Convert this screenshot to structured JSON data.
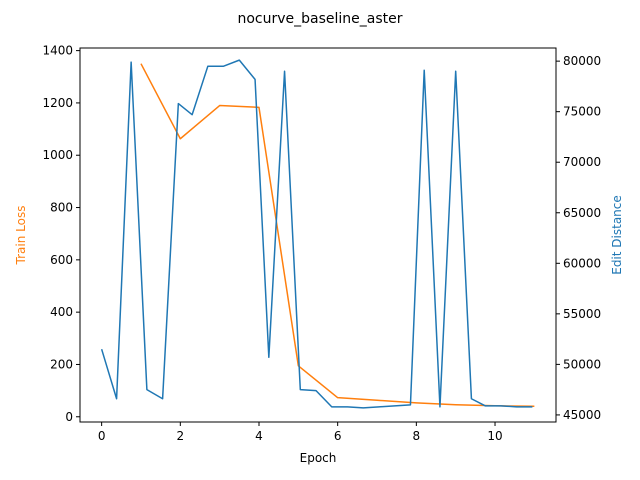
{
  "chart_data": {
    "type": "line",
    "title": "nocurve_baseline_aster",
    "xlabel": "Epoch",
    "ylabel_left": "Train Loss",
    "ylabel_right": "Edit Distance",
    "xlim": [
      -0.55,
      11.55
    ],
    "ylim_left": [
      -20,
      1410
    ],
    "ylim_right": [
      44300,
      81300
    ],
    "x_ticks": [
      0,
      2,
      4,
      6,
      8,
      10
    ],
    "y_ticks_left": [
      0,
      200,
      400,
      600,
      800,
      1000,
      1200,
      1400
    ],
    "y_ticks_right": [
      45000,
      50000,
      55000,
      60000,
      65000,
      70000,
      75000,
      80000
    ],
    "y_tick_labels_right": [
      "45000",
      "50000",
      "55000",
      "60000",
      "65000",
      "70000",
      "75000",
      "80000"
    ],
    "grid": false,
    "series": [
      {
        "axis": "left",
        "color": "#ff7f0e",
        "x": [
          1,
          2,
          3,
          4,
          5,
          6,
          7,
          8,
          9,
          10,
          11
        ],
        "y": [
          1350,
          1063,
          1190,
          1183,
          195,
          73,
          63,
          53,
          46,
          42,
          40
        ]
      },
      {
        "axis": "right",
        "color": "#1f77b4",
        "x": [
          0,
          0.38,
          0.75,
          1.15,
          1.55,
          1.95,
          2.3,
          2.7,
          3.1,
          3.5,
          3.9,
          4.25,
          4.65,
          5.05,
          5.45,
          5.85,
          6.25,
          6.65,
          7.05,
          7.45,
          7.85,
          8.2,
          8.6,
          9.0,
          9.4,
          9.75,
          10.15,
          10.55,
          10.95
        ],
        "y": [
          51500,
          46600,
          79900,
          47500,
          46600,
          75800,
          74700,
          79500,
          79500,
          80100,
          78200,
          50700,
          79000,
          47500,
          47400,
          45800,
          45800,
          45700,
          45800,
          45900,
          46000,
          79100,
          45800,
          79000,
          46600,
          45900,
          45900,
          45800,
          45800
        ]
      }
    ]
  }
}
